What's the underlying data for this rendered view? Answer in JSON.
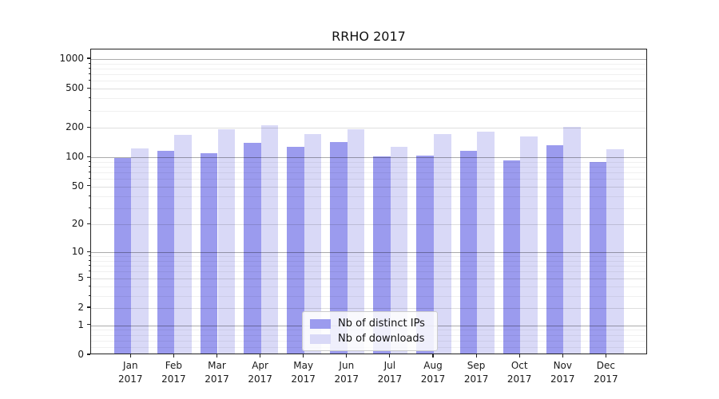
{
  "title": "RRHO 2017",
  "chart_data": {
    "type": "bar",
    "title": "RRHO 2017",
    "categories": [
      "Jan",
      "Feb",
      "Mar",
      "Apr",
      "May",
      "Jun",
      "Jul",
      "Aug",
      "Sep",
      "Oct",
      "Nov",
      "Dec"
    ],
    "category_year": "2017",
    "series": [
      {
        "name": "Nb of distinct IPs",
        "color": "#9b9bee",
        "values": [
          94,
          113,
          107,
          136,
          123,
          139,
          99,
          100,
          112,
          90,
          127,
          87
        ]
      },
      {
        "name": "Nb of downloads",
        "color": "#d9d9f7",
        "values": [
          118,
          163,
          188,
          206,
          168,
          186,
          124,
          166,
          175,
          157,
          198,
          116
        ]
      }
    ],
    "xlabel": "",
    "ylabel": "",
    "y_scale": "symlog(log1p)",
    "y_ticks": [
      1000,
      500,
      200,
      100,
      50,
      20,
      10,
      5,
      2,
      1,
      0
    ],
    "y_axis_top_value": 1250,
    "grid": "major+minor horizontal",
    "legend_position": "lower center inside plot",
    "colors": {
      "grid_decade": "rgba(0,0,0,0.33)",
      "grid_mid": "rgba(0,0,0,0.13)",
      "grid_minor": "rgba(0,0,0,0.06)",
      "axis": "#222222",
      "background": "#ffffff"
    }
  },
  "legend": {
    "items": [
      {
        "label": "Nb of distinct IPs"
      },
      {
        "label": "Nb of downloads"
      }
    ]
  }
}
